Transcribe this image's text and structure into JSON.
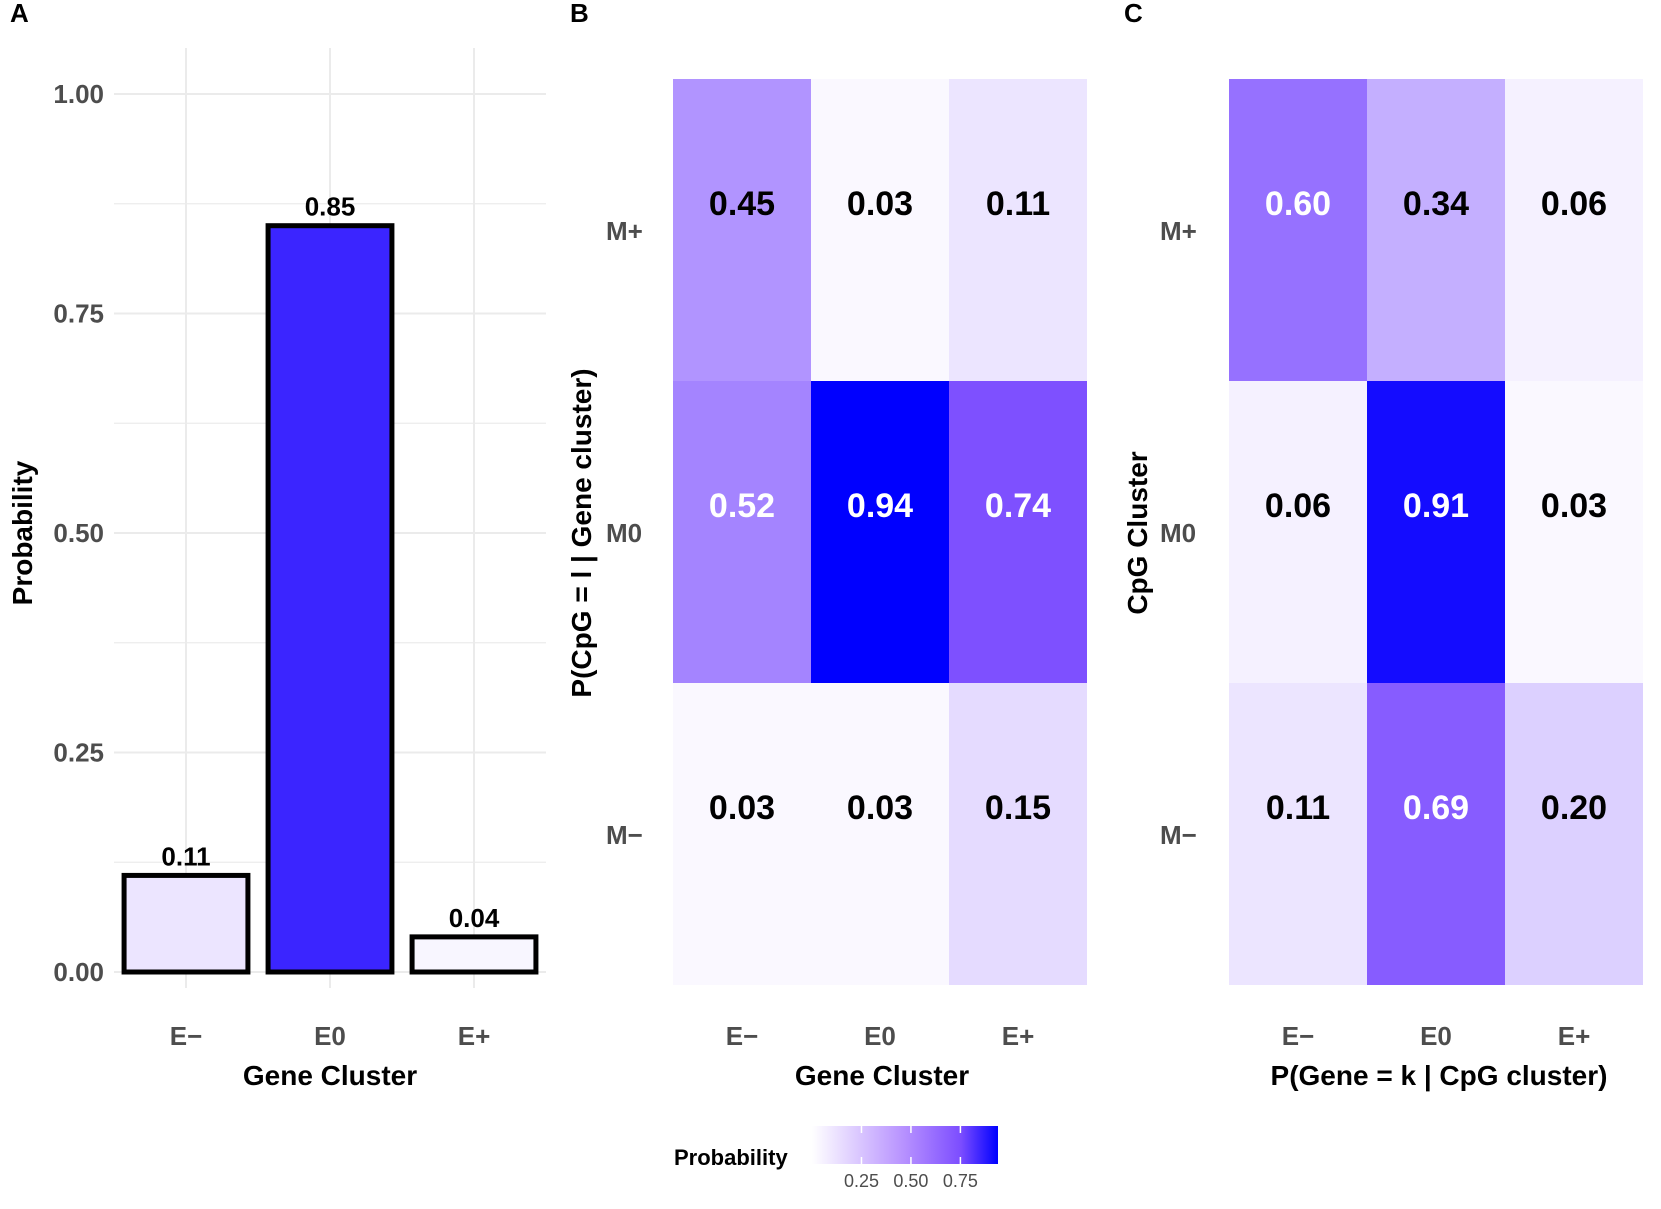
{
  "panels": [
    "A",
    "B",
    "C"
  ],
  "legend": {
    "title": "Probability",
    "ticks": [
      "0.25",
      "0.50",
      "0.75"
    ],
    "tick_values": [
      0.25,
      0.5,
      0.75
    ],
    "range": [
      0,
      0.94
    ]
  },
  "colors": {
    "low": "#ffffff",
    "mid": "#7c4dff",
    "high": "#0000ff",
    "text_dark": "#000000",
    "text_light": "#ffffff",
    "grid": "#ebebeb",
    "bar_outline": "#000000"
  },
  "chart_data": [
    {
      "panel": "A",
      "type": "bar",
      "categories": [
        "E−",
        "E0",
        "E+"
      ],
      "values": [
        0.11,
        0.85,
        0.04
      ],
      "value_labels": [
        "0.11",
        "0.85",
        "0.04"
      ],
      "xlabel": "Gene Cluster",
      "ylabel": "Probability",
      "ylim": [
        0,
        1.0
      ],
      "yticks": [
        "0.00",
        "0.25",
        "0.50",
        "0.75",
        "1.00"
      ],
      "ytick_values": [
        0,
        0.25,
        0.5,
        0.75,
        1.0
      ],
      "grid": true
    },
    {
      "panel": "B",
      "type": "heatmap",
      "x_categories": [
        "E−",
        "E0",
        "E+"
      ],
      "y_categories": [
        "M+",
        "M0",
        "M−"
      ],
      "values": [
        [
          0.45,
          0.03,
          0.11
        ],
        [
          0.52,
          0.94,
          0.74
        ],
        [
          0.03,
          0.03,
          0.15
        ]
      ],
      "cell_labels": [
        [
          "0.45",
          "0.03",
          "0.11"
        ],
        [
          "0.52",
          "0.94",
          "0.74"
        ],
        [
          "0.03",
          "0.03",
          "0.15"
        ]
      ],
      "xlabel": "Gene Cluster",
      "ylabel": "P(CpG = l | Gene cluster)"
    },
    {
      "panel": "C",
      "type": "heatmap",
      "x_categories": [
        "E−",
        "E0",
        "E+"
      ],
      "y_categories": [
        "M+",
        "M0",
        "M−"
      ],
      "values": [
        [
          0.6,
          0.34,
          0.06
        ],
        [
          0.06,
          0.91,
          0.03
        ],
        [
          0.11,
          0.69,
          0.2
        ]
      ],
      "cell_labels": [
        [
          "0.60",
          "0.34",
          "0.06"
        ],
        [
          "0.06",
          "0.91",
          "0.03"
        ],
        [
          "0.11",
          "0.69",
          "0.20"
        ]
      ],
      "xlabel": "P(Gene = k | CpG cluster)",
      "ylabel": "CpG Cluster"
    }
  ]
}
